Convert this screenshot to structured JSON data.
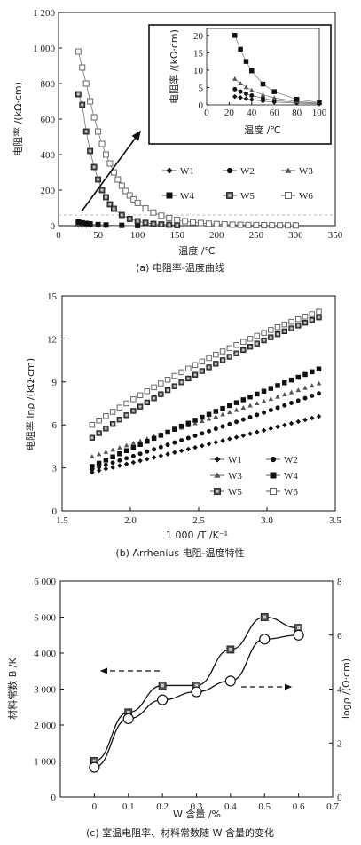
{
  "chart_data": [
    {
      "type": "scatter",
      "caption": "(a) 电阻率-温度曲线",
      "xlabel": "温度 /℃",
      "ylabel": "电阻率 /(kΩ·cm)",
      "xlim": [
        0,
        350
      ],
      "ylim": [
        0,
        1200
      ],
      "xticks": [
        "0",
        "50",
        "100",
        "150",
        "200",
        "250",
        "300",
        "350"
      ],
      "yticks": [
        "0",
        "200",
        "400",
        "600",
        "800",
        "1 000",
        "1 200"
      ],
      "legend": [
        "W1",
        "W2",
        "W3",
        "W4",
        "W5",
        "W6"
      ],
      "series": [
        {
          "name": "W1",
          "marker": "diamond",
          "values": [
            [
              25,
              2.4
            ],
            [
              30,
              2.1
            ],
            [
              35,
              1.8
            ],
            [
              40,
              1.5
            ],
            [
              50,
              1.1
            ],
            [
              60,
              0.8
            ],
            [
              80,
              0.5
            ],
            [
              100,
              0.3
            ]
          ]
        },
        {
          "name": "W2",
          "marker": "circle",
          "values": [
            [
              25,
              4.5
            ],
            [
              30,
              3.8
            ],
            [
              35,
              3.2
            ],
            [
              40,
              2.7
            ],
            [
              50,
              1.9
            ],
            [
              60,
              1.3
            ],
            [
              80,
              0.7
            ],
            [
              100,
              0.4
            ]
          ]
        },
        {
          "name": "W3",
          "marker": "triangle",
          "values": [
            [
              25,
              7.5
            ],
            [
              30,
              6.2
            ],
            [
              35,
              5.1
            ],
            [
              40,
              4.2
            ],
            [
              50,
              2.9
            ],
            [
              60,
              2
            ],
            [
              80,
              1
            ],
            [
              100,
              0.5
            ]
          ]
        },
        {
          "name": "W4",
          "marker": "square",
          "values": [
            [
              25,
              20
            ],
            [
              30,
              16
            ],
            [
              35,
              12.5
            ],
            [
              40,
              9.8
            ],
            [
              50,
              6
            ],
            [
              60,
              3.8
            ],
            [
              80,
              1.6
            ],
            [
              100,
              0.7
            ]
          ]
        },
        {
          "name": "W5",
          "marker": "square-x",
          "values": [
            [
              25,
              740
            ],
            [
              30,
              680
            ],
            [
              35,
              530
            ],
            [
              40,
              420
            ],
            [
              45,
              330
            ],
            [
              50,
              260
            ],
            [
              55,
              200
            ],
            [
              60,
              160
            ],
            [
              65,
              120
            ],
            [
              70,
              95
            ],
            [
              80,
              60
            ],
            [
              90,
              38
            ],
            [
              100,
              25
            ],
            [
              110,
              16
            ],
            [
              120,
              10
            ],
            [
              130,
              7
            ],
            [
              140,
              5
            ],
            [
              150,
              3
            ]
          ]
        },
        {
          "name": "W6",
          "marker": "square-open",
          "values": [
            [
              25,
              980
            ],
            [
              30,
              890
            ],
            [
              35,
              800
            ],
            [
              40,
              700
            ],
            [
              45,
              610
            ],
            [
              50,
              530
            ],
            [
              55,
              460
            ],
            [
              60,
              400
            ],
            [
              65,
              350
            ],
            [
              70,
              300
            ],
            [
              75,
              260
            ],
            [
              80,
              225
            ],
            [
              85,
              195
            ],
            [
              90,
              170
            ],
            [
              95,
              148
            ],
            [
              100,
              128
            ],
            [
              110,
              97
            ],
            [
              120,
              74
            ],
            [
              130,
              56
            ],
            [
              140,
              43
            ],
            [
              150,
              33
            ],
            [
              160,
              25
            ],
            [
              170,
              19
            ],
            [
              180,
              15
            ],
            [
              190,
              11
            ],
            [
              200,
              9
            ],
            [
              210,
              7
            ],
            [
              220,
              5.5
            ],
            [
              230,
              4.5
            ],
            [
              240,
              3.5
            ],
            [
              250,
              3
            ],
            [
              260,
              2.5
            ],
            [
              270,
              2
            ],
            [
              280,
              1.7
            ],
            [
              290,
              1.4
            ],
            [
              300,
              1.2
            ]
          ]
        }
      ],
      "inset": {
        "xlabel": "温度 /℃",
        "ylabel": "电阻率 /(kΩ·cm)",
        "xlim": [
          0,
          100
        ],
        "ylim": [
          0,
          22
        ],
        "xticks": [
          "0",
          "20",
          "40",
          "60",
          "80",
          "100"
        ],
        "yticks": [
          "0",
          "5",
          "10",
          "15",
          "20"
        ]
      }
    },
    {
      "type": "scatter",
      "caption": "(b) Arrhenius 电阻-温度特性",
      "xlabel": "1 000 /T /K⁻¹",
      "ylabel": "电阻率 lnρ /(kΩ·cm)",
      "xlim": [
        1.5,
        3.5
      ],
      "ylim": [
        0,
        15
      ],
      "xticks": [
        "1.5",
        "2.0",
        "2.5",
        "3.0",
        "3.5"
      ],
      "yticks": [
        "0",
        "3",
        "6",
        "9",
        "12",
        "15"
      ],
      "legend": [
        "W1",
        "W2",
        "W3",
        "W4",
        "W5",
        "W6"
      ],
      "series": [
        {
          "name": "W1",
          "marker": "diamond",
          "x_range": [
            1.72,
            3.38
          ],
          "y_range": [
            2.7,
            6.6
          ],
          "curvature": 0.05
        },
        {
          "name": "W2",
          "marker": "circle",
          "x_range": [
            1.72,
            3.38
          ],
          "y_range": [
            2.9,
            8.2
          ],
          "curvature": 0.05
        },
        {
          "name": "W3",
          "marker": "triangle",
          "x_range": [
            1.72,
            3.38
          ],
          "y_range": [
            3.8,
            8.9
          ],
          "curvature": 0.0
        },
        {
          "name": "W4",
          "marker": "square",
          "x_range": [
            1.72,
            3.38
          ],
          "y_range": [
            3.1,
            9.9
          ],
          "curvature": -0.08
        },
        {
          "name": "W5",
          "marker": "square-x",
          "x_range": [
            1.72,
            3.38
          ],
          "y_range": [
            5.1,
            13.5
          ],
          "curvature": -0.28
        },
        {
          "name": "W6",
          "marker": "square-open",
          "x_range": [
            1.72,
            3.38
          ],
          "y_range": [
            6.0,
            13.9
          ],
          "curvature": -0.3
        }
      ]
    },
    {
      "type": "line",
      "caption": "(c) 室温电阻率、材料常数随 W 含量的变化",
      "xlabel": "W 含量 /%",
      "ylabel_left": "材料常数 B /K",
      "ylabel_right": "logρ /(Ω·cm)",
      "xlim": [
        -0.1,
        0.7
      ],
      "ylim_left": [
        0,
        6000
      ],
      "ylim_right": [
        0,
        8
      ],
      "xticks": [
        "0",
        "0.1",
        "0.2",
        "0.3",
        "0.4",
        "0.5",
        "0.6",
        "0.7"
      ],
      "yticks_left": [
        "0",
        "1 000",
        "2 000",
        "3 000",
        "4 000",
        "5 000",
        "6 000"
      ],
      "yticks_right": [
        "0",
        "2",
        "4",
        "6",
        "8"
      ],
      "series": [
        {
          "name": "B",
          "marker": "square-x",
          "axis": "left",
          "x": [
            0,
            0.1,
            0.2,
            0.3,
            0.4,
            0.5,
            0.6
          ],
          "values": [
            1000,
            2350,
            3100,
            3100,
            4100,
            5000,
            4700
          ]
        },
        {
          "name": "logρ",
          "marker": "circle-open",
          "axis": "right",
          "x": [
            0,
            0.1,
            0.2,
            0.3,
            0.4,
            0.5,
            0.6
          ],
          "values": [
            1.1,
            2.9,
            3.6,
            3.9,
            4.3,
            5.85,
            6.0
          ]
        }
      ]
    }
  ]
}
